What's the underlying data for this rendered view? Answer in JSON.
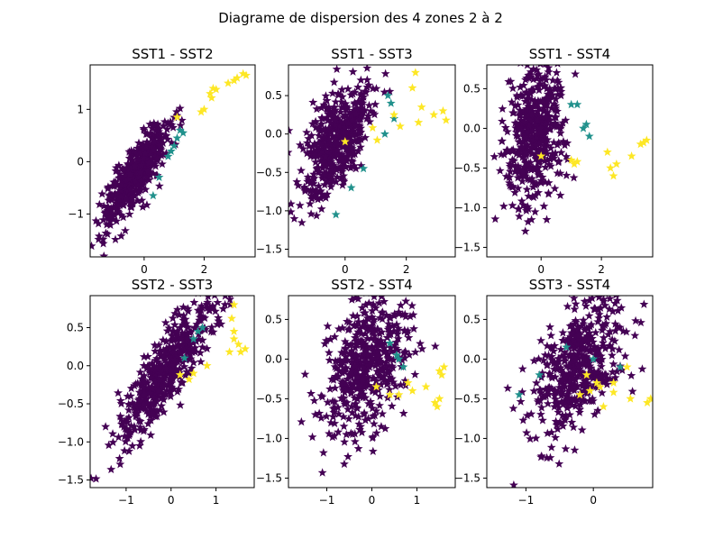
{
  "chart_data": {
    "type": "scatter",
    "title": "Diagrame de dispersion des 4 zones 2 à 2",
    "marker": "star",
    "colors": {
      "cluster_0": "#440154",
      "cluster_1": "#21918c",
      "cluster_2": "#fde725"
    },
    "panels": [
      {
        "title": "SST1 - SST2",
        "xlim": [
          -1.8,
          3.7
        ],
        "ylim": [
          -1.82,
          1.85
        ],
        "xticks": [
          0,
          2
        ],
        "yticks": [
          -1,
          0,
          1
        ],
        "xtick_labels": [
          "0",
          "2"
        ],
        "ytick_labels": [
          "−1",
          "0",
          "1"
        ],
        "cloud": {
          "mean": [
            -0.3,
            -0.25
          ],
          "sd": [
            0.55,
            0.5
          ],
          "corr": 0.85,
          "count": 480
        },
        "teal_points": [
          [
            1.0,
            0.3
          ],
          [
            1.1,
            0.45
          ],
          [
            1.3,
            0.55
          ],
          [
            0.9,
            0.2
          ],
          [
            0.5,
            -0.3
          ],
          [
            0.3,
            -0.65
          ],
          [
            1.2,
            0.6
          ],
          [
            0.8,
            0.1
          ]
        ],
        "yellow_points": [
          [
            2.2,
            1.3
          ],
          [
            2.3,
            1.4
          ],
          [
            2.4,
            1.38
          ],
          [
            2.25,
            1.22
          ],
          [
            2.8,
            1.5
          ],
          [
            3.0,
            1.55
          ],
          [
            3.1,
            1.6
          ],
          [
            3.3,
            1.68
          ],
          [
            3.4,
            1.65
          ],
          [
            1.1,
            0.85
          ],
          [
            2.0,
            1.0
          ],
          [
            1.9,
            0.95
          ]
        ]
      },
      {
        "title": "SST1 - SST3",
        "xlim": [
          -1.85,
          3.6
        ],
        "ylim": [
          -1.6,
          0.9
        ],
        "xticks": [
          0,
          2
        ],
        "yticks": [
          -1.5,
          -1.0,
          -0.5,
          0.0,
          0.5
        ],
        "xtick_labels": [
          "0",
          "2"
        ],
        "ytick_labels": [
          "−1.5",
          "−1.0",
          "−0.5",
          "0.0",
          "0.5"
        ],
        "cloud": {
          "mean": [
            -0.3,
            -0.1
          ],
          "sd": [
            0.55,
            0.38
          ],
          "corr": 0.55,
          "count": 480
        },
        "teal_points": [
          [
            1.5,
            0.4
          ],
          [
            1.6,
            0.2
          ],
          [
            1.3,
            0.0
          ],
          [
            0.6,
            -0.45
          ],
          [
            0.2,
            -0.7
          ],
          [
            -0.3,
            -1.05
          ],
          [
            1.4,
            0.5
          ]
        ],
        "yellow_points": [
          [
            2.3,
            0.8
          ],
          [
            2.2,
            0.6
          ],
          [
            2.5,
            0.35
          ],
          [
            2.9,
            0.25
          ],
          [
            3.2,
            0.3
          ],
          [
            3.3,
            0.18
          ],
          [
            2.4,
            0.15
          ],
          [
            1.8,
            0.1
          ],
          [
            0.9,
            0.08
          ],
          [
            1.05,
            -0.08
          ],
          [
            0.0,
            -0.1
          ],
          [
            1.6,
            0.25
          ]
        ]
      },
      {
        "title": "SST1 - SST4",
        "xlim": [
          -1.8,
          3.7
        ],
        "ylim": [
          -1.62,
          0.8
        ],
        "xticks": [
          0,
          2
        ],
        "yticks": [
          -1.5,
          -1.0,
          -0.5,
          0.0,
          0.5
        ],
        "xtick_labels": [
          "0",
          "2"
        ],
        "ytick_labels": [
          "−1.5",
          "−1.0",
          "−0.5",
          "0.0",
          "0.5"
        ],
        "cloud": {
          "mean": [
            -0.2,
            -0.05
          ],
          "sd": [
            0.5,
            0.42
          ],
          "corr": 0.25,
          "count": 480
        },
        "teal_points": [
          [
            1.0,
            0.3
          ],
          [
            1.2,
            0.3
          ],
          [
            1.5,
            0.05
          ],
          [
            1.6,
            -0.1
          ],
          [
            1.4,
            0.0
          ]
        ],
        "yellow_points": [
          [
            3.5,
            -0.15
          ],
          [
            3.3,
            -0.2
          ],
          [
            3.0,
            -0.35
          ],
          [
            2.4,
            -0.6
          ],
          [
            2.3,
            -0.5
          ],
          [
            2.5,
            -0.45
          ],
          [
            1.0,
            -0.4
          ],
          [
            1.2,
            -0.42
          ],
          [
            2.2,
            -0.3
          ],
          [
            0.0,
            -0.35
          ],
          [
            3.4,
            -0.18
          ],
          [
            1.1,
            -0.45
          ]
        ]
      },
      {
        "title": "SST2 - SST3",
        "xlim": [
          -1.8,
          1.85
        ],
        "ylim": [
          -1.6,
          0.92
        ],
        "xticks": [
          -1,
          0,
          1
        ],
        "yticks": [
          -1.5,
          -1.0,
          -0.5,
          0.0,
          0.5
        ],
        "xtick_labels": [
          "−1",
          "0",
          "1"
        ],
        "ytick_labels": [
          "−1.5",
          "−1.0",
          "−0.5",
          "0.0",
          "0.5"
        ],
        "cloud": {
          "mean": [
            -0.15,
            -0.1
          ],
          "sd": [
            0.55,
            0.45
          ],
          "corr": 0.88,
          "count": 480
        },
        "teal_points": [
          [
            0.7,
            0.5
          ],
          [
            0.5,
            0.35
          ],
          [
            0.3,
            0.1
          ],
          [
            0.6,
            0.45
          ]
        ],
        "yellow_points": [
          [
            1.4,
            0.8
          ],
          [
            1.35,
            0.62
          ],
          [
            1.4,
            0.35
          ],
          [
            1.5,
            0.28
          ],
          [
            1.65,
            0.22
          ],
          [
            1.55,
            0.18
          ],
          [
            1.3,
            0.18
          ],
          [
            0.8,
            0.0
          ],
          [
            0.2,
            -0.12
          ],
          [
            0.4,
            -0.18
          ],
          [
            1.4,
            0.45
          ],
          [
            0.5,
            -0.1
          ]
        ]
      },
      {
        "title": "SST2 - SST4",
        "xlim": [
          -1.85,
          1.85
        ],
        "ylim": [
          -1.62,
          0.8
        ],
        "xticks": [
          -1,
          0,
          1
        ],
        "yticks": [
          -1.5,
          -1.0,
          -0.5,
          0.0,
          0.5
        ],
        "xtick_labels": [
          "−1",
          "0",
          "1"
        ],
        "ytick_labels": [
          "−1.5",
          "−1.0",
          "−0.5",
          "0.0",
          "0.5"
        ],
        "cloud": {
          "mean": [
            -0.1,
            -0.05
          ],
          "sd": [
            0.5,
            0.45
          ],
          "corr": 0.45,
          "count": 480
        },
        "teal_points": [
          [
            0.6,
            0.0
          ],
          [
            0.4,
            0.2
          ],
          [
            0.7,
            -0.1
          ],
          [
            0.55,
            0.05
          ]
        ],
        "yellow_points": [
          [
            1.5,
            -0.15
          ],
          [
            1.6,
            -0.1
          ],
          [
            1.4,
            -0.55
          ],
          [
            1.45,
            -0.6
          ],
          [
            1.2,
            -0.35
          ],
          [
            0.9,
            -0.4
          ],
          [
            0.6,
            -0.45
          ],
          [
            0.4,
            -0.45
          ],
          [
            0.1,
            -0.35
          ],
          [
            1.5,
            -0.5
          ],
          [
            1.55,
            -0.2
          ],
          [
            0.8,
            -0.3
          ]
        ]
      },
      {
        "title": "SST3 - SST4",
        "xlim": [
          -1.58,
          0.88
        ],
        "ylim": [
          -1.62,
          0.8
        ],
        "xticks": [
          -1,
          0
        ],
        "yticks": [
          -1.5,
          -1.0,
          -0.5,
          0.0,
          0.5
        ],
        "xtick_labels": [
          "−1",
          "0"
        ],
        "ytick_labels": [
          "−1.5",
          "−1.0",
          "−0.5",
          "0.0",
          "0.5"
        ],
        "cloud": {
          "mean": [
            -0.2,
            -0.05
          ],
          "sd": [
            0.35,
            0.45
          ],
          "corr": 0.55,
          "count": 480
        },
        "teal_points": [
          [
            -1.1,
            -0.45
          ],
          [
            -0.8,
            -0.2
          ],
          [
            -0.4,
            0.15
          ],
          [
            0.0,
            0.0
          ],
          [
            0.4,
            -0.1
          ]
        ],
        "yellow_points": [
          [
            0.55,
            -0.5
          ],
          [
            0.8,
            -0.55
          ],
          [
            0.3,
            -0.42
          ],
          [
            0.1,
            -0.35
          ],
          [
            0.05,
            -0.3
          ],
          [
            -0.05,
            -0.4
          ],
          [
            -0.2,
            -0.45
          ],
          [
            0.15,
            -0.6
          ],
          [
            0.85,
            -0.5
          ],
          [
            0.5,
            -0.1
          ],
          [
            0.3,
            -0.3
          ],
          [
            -0.1,
            -0.2
          ]
        ]
      }
    ]
  }
}
